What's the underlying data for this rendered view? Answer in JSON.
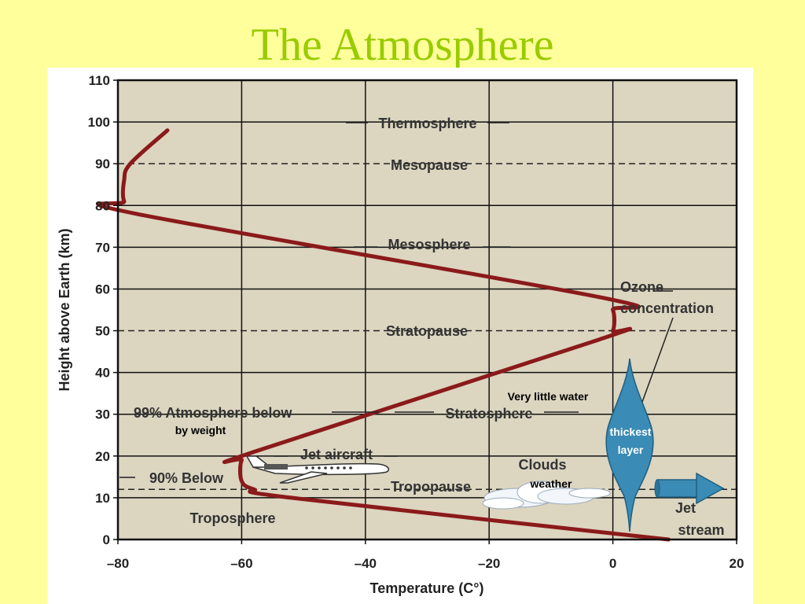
{
  "slide": {
    "title": "The Atmosphere"
  },
  "colors": {
    "background": "#ffff9c",
    "title": "#99cc00",
    "plot_area": "#dcd5c0",
    "curve": "#8b1a1a",
    "ozone": "#3a8bb5"
  },
  "chart_data": {
    "type": "line",
    "xlabel": "Temperature (C°)",
    "ylabel": "Height above Earth (km)",
    "xlim": [
      -80,
      20
    ],
    "ylim": [
      0,
      110
    ],
    "x_ticks": [
      -80,
      -60,
      -40,
      -20,
      0,
      20
    ],
    "y_ticks": [
      0,
      10,
      20,
      30,
      40,
      50,
      60,
      70,
      80,
      90,
      100,
      110
    ],
    "x_tick_labels": [
      "–80",
      "–60",
      "–40",
      "–20",
      "0",
      "20"
    ],
    "y_tick_labels": [
      "0",
      "10",
      "20",
      "30",
      "40",
      "50",
      "60",
      "70",
      "80",
      "90",
      "100",
      "110"
    ],
    "grid": true,
    "dashed_levels": [
      {
        "label": "Tropopause",
        "y": 12
      },
      {
        "label": "Stratopause",
        "y": 50
      },
      {
        "label": "Mesopause",
        "y": 90
      }
    ],
    "series": [
      {
        "x": [
          9,
          -52,
          -58,
          -60,
          -60,
          -58,
          -2,
          0,
          0,
          -2,
          -77,
          -79,
          -79,
          -78,
          -72
        ],
        "y": [
          0,
          10,
          12,
          14,
          19,
          21,
          48,
          50,
          55,
          58,
          78,
          81,
          86,
          90,
          98
        ]
      }
    ],
    "annotations": {
      "thermosphere": "Thermosphere",
      "mesopause": "Mesopause",
      "mesosphere": "Mesosphere",
      "ozone_line1": "Ozone",
      "ozone_line2": "concentration",
      "stratopause": "Stratopause",
      "very_little_water": "Very little water",
      "atmosphere_below": "99% Atmosphere below",
      "by_weight": "by weight",
      "stratosphere": "Stratosphere",
      "thickest_line1": "thickest",
      "thickest_line2": "layer",
      "jet_aircraft": "Jet aircraft",
      "clouds": "Clouds",
      "ninety_below": "90% Below",
      "weather": "weather",
      "tropopause": "Tropopause",
      "jet_stream_line1": "Jet",
      "jet_stream_line2": "stream",
      "troposphere": "Troposphere"
    }
  }
}
